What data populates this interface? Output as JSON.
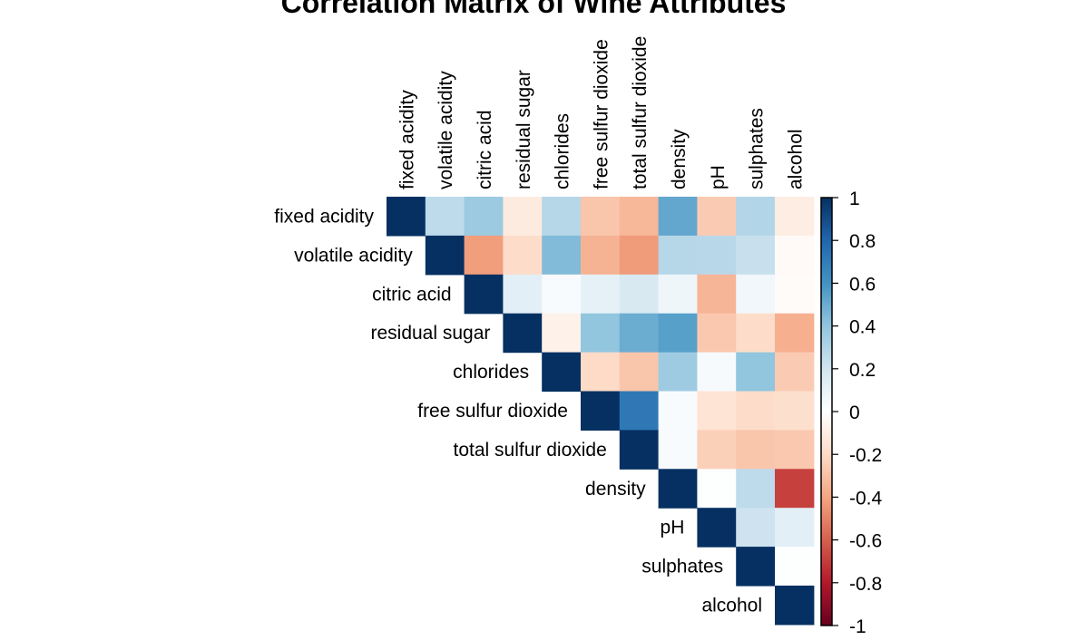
{
  "chart_data": {
    "type": "heatmap",
    "title": "Correlation Matrix of Wine Attributes",
    "variables": [
      "fixed acidity",
      "volatile acidity",
      "citric acid",
      "residual sugar",
      "chlorides",
      "free sulfur dioxide",
      "total sulfur dioxide",
      "density",
      "pH",
      "sulphates",
      "alcohol"
    ],
    "layout": "upper-triangle",
    "matrix": [
      [
        1,
        0.26,
        0.37,
        -0.11,
        0.29,
        -0.28,
        -0.33,
        0.52,
        -0.26,
        0.3,
        -0.1
      ],
      [
        null,
        1,
        -0.42,
        -0.19,
        0.44,
        -0.35,
        -0.43,
        0.29,
        0.28,
        0.23,
        -0.03
      ],
      [
        null,
        null,
        1,
        0.12,
        0.03,
        0.11,
        0.17,
        0.07,
        -0.34,
        0.06,
        -0.02
      ],
      [
        null,
        null,
        null,
        1,
        -0.08,
        0.4,
        0.5,
        0.55,
        -0.27,
        -0.19,
        -0.36
      ],
      [
        null,
        null,
        null,
        null,
        1,
        -0.2,
        -0.28,
        0.36,
        0.04,
        0.4,
        -0.26
      ],
      [
        null,
        null,
        null,
        null,
        null,
        1,
        0.72,
        0.03,
        -0.15,
        -0.19,
        -0.18
      ],
      [
        null,
        null,
        null,
        null,
        null,
        null,
        1,
        0.03,
        -0.24,
        -0.28,
        -0.27
      ],
      [
        null,
        null,
        null,
        null,
        null,
        null,
        null,
        1,
        0.01,
        0.26,
        -0.69
      ],
      [
        null,
        null,
        null,
        null,
        null,
        null,
        null,
        null,
        1,
        0.21,
        0.12
      ],
      [
        null,
        null,
        null,
        null,
        null,
        null,
        null,
        null,
        null,
        1,
        0.01
      ],
      [
        null,
        null,
        null,
        null,
        null,
        null,
        null,
        null,
        null,
        null,
        1
      ]
    ],
    "colorbar": {
      "ticks": [
        "1",
        "0.8",
        "0.6",
        "0.4",
        "0.2",
        "0",
        "-0.2",
        "-0.4",
        "-0.6",
        "-0.8",
        "-1"
      ],
      "range": [
        -1,
        1
      ],
      "low_color": "#67001f",
      "zero_color": "#ffffff",
      "high_color": "#053061"
    },
    "grid": false
  }
}
